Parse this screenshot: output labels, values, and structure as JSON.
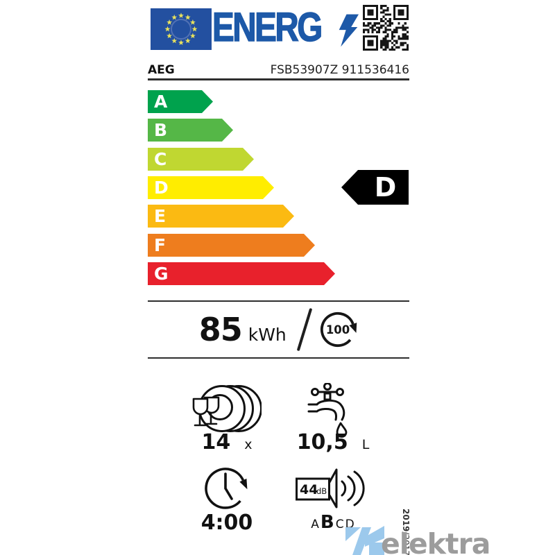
{
  "label": {
    "logo_text": "ENERG",
    "brand": "AEG",
    "model": "FSB53907Z 911536416"
  },
  "icons": {
    "flag": "eu-flag",
    "bolt": "lightning-bolt-icon",
    "qr": "qr-code",
    "cycle": "cycle-arrow-icon",
    "capacity": "place-settings-icon",
    "water": "water-tap-icon",
    "duration": "clock-icon",
    "noise": "speaker-icon"
  },
  "scale": {
    "classes": [
      {
        "label": "A",
        "color": "#00a24d"
      },
      {
        "label": "B",
        "color": "#55b747"
      },
      {
        "label": "C",
        "color": "#c0d731"
      },
      {
        "label": "D",
        "color": "#ffed00"
      },
      {
        "label": "E",
        "color": "#fbba12"
      },
      {
        "label": "F",
        "color": "#ee7d1e"
      },
      {
        "label": "G",
        "color": "#e8212c"
      }
    ],
    "rating": "D"
  },
  "energy": {
    "value": "85",
    "unit": "kWh",
    "per_cycles": "100"
  },
  "capacity": {
    "value": "14",
    "unit": "x"
  },
  "water": {
    "value": "10,5",
    "unit": "L"
  },
  "duration": {
    "value": "4:00"
  },
  "noise": {
    "value": "44",
    "unit": "dB",
    "scale": [
      "A",
      "B",
      "C",
      "D"
    ],
    "active": "B"
  },
  "regulation": {
    "bold": "2019",
    "rest": "/2017"
  },
  "watermark": {
    "text": "elektra"
  }
}
